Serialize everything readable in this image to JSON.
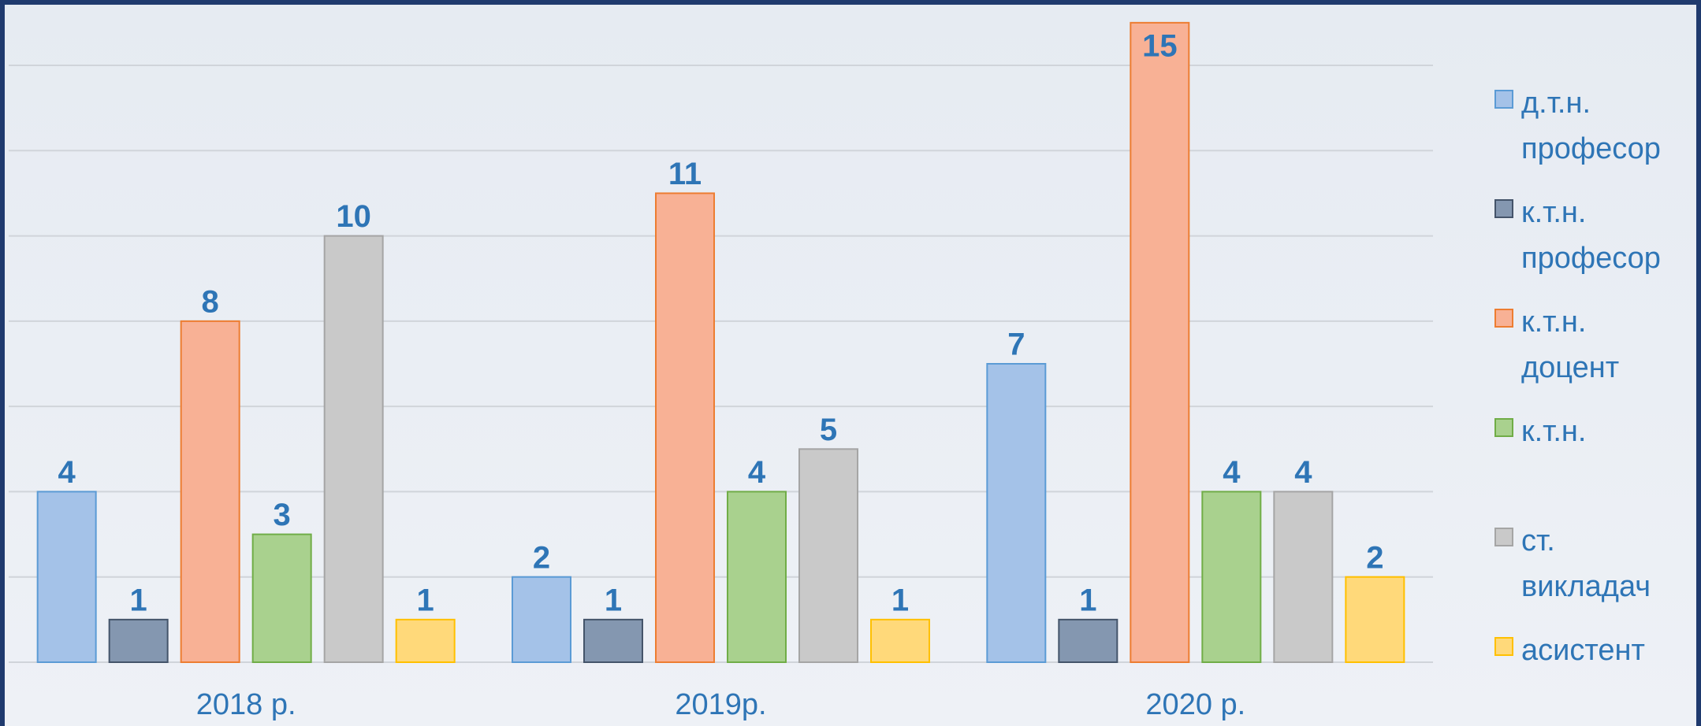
{
  "chart_data": {
    "type": "bar",
    "categories": [
      "2018 р.",
      "2019р.",
      "2020 р."
    ],
    "series": [
      {
        "name": "д.т.н. професор",
        "color": "#a4c2e8",
        "values": [
          4,
          2,
          7
        ]
      },
      {
        "name": "к.т.н. професор",
        "color": "#8497b0",
        "values": [
          1,
          1,
          1
        ]
      },
      {
        "name": "к.т.н. доцент",
        "color": "#f8b195",
        "values": [
          8,
          11,
          15
        ]
      },
      {
        "name": "к.т.н.",
        "color": "#a9d18e",
        "values": [
          3,
          4,
          4
        ]
      },
      {
        "name": "ст. викладач",
        "color": "#c9c9c9",
        "values": [
          10,
          5,
          4
        ]
      },
      {
        "name": "асистент",
        "color": "#ffd97a",
        "values": [
          1,
          1,
          2
        ]
      }
    ],
    "ylim": [
      0,
      14
    ],
    "yticks": [
      0,
      2,
      4,
      6,
      8,
      10,
      12,
      14
    ],
    "grid": true,
    "legend": "right"
  }
}
